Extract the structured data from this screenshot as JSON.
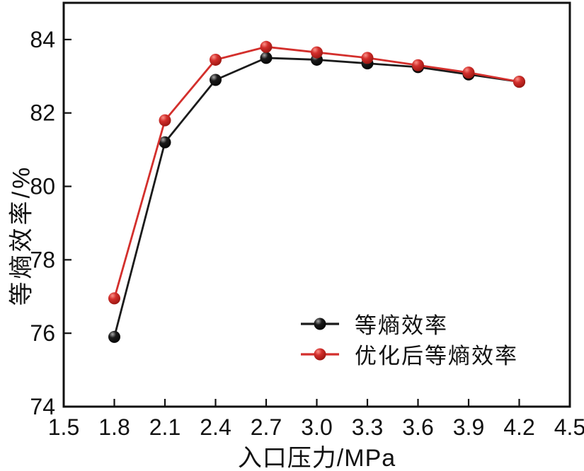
{
  "figure": {
    "background_color": "#ffffff",
    "text_color": "#111111"
  },
  "chart_data": {
    "type": "line",
    "title": "",
    "xlabel": "入口压力/MPa",
    "ylabel": "等熵效率/%",
    "xlim": [
      1.5,
      4.5
    ],
    "ylim": [
      74,
      85
    ],
    "x_ticks": [
      1.5,
      1.8,
      2.1,
      2.4,
      2.7,
      3.0,
      3.3,
      3.6,
      3.9,
      4.2,
      4.5
    ],
    "y_ticks": [
      74,
      76,
      78,
      80,
      82,
      84
    ],
    "grid": false,
    "frame": "full-box",
    "tick_direction": "in",
    "legend_position": "inside-lower-right",
    "x": [
      1.8,
      2.1,
      2.4,
      2.7,
      3.0,
      3.3,
      3.6,
      3.9,
      4.2
    ],
    "series": [
      {
        "name": "等熵效率",
        "color": "#1b1b1b",
        "marker": "ball",
        "values": [
          75.9,
          81.2,
          82.9,
          83.5,
          83.45,
          83.35,
          83.25,
          83.05,
          82.85
        ]
      },
      {
        "name": "优化后等熵效率",
        "color": "#d32f2c",
        "marker": "ball",
        "values": [
          76.95,
          81.8,
          83.45,
          83.8,
          83.65,
          83.5,
          83.3,
          83.1,
          82.85
        ]
      }
    ]
  }
}
